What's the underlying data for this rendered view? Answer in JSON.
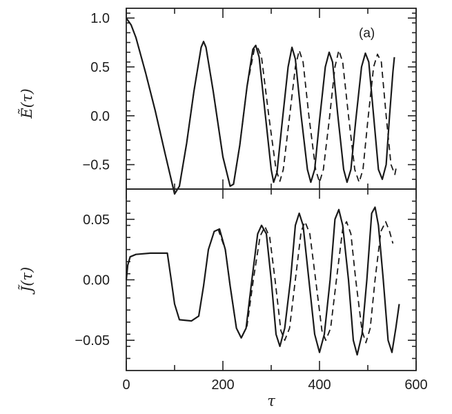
{
  "chart_data": [
    {
      "type": "line",
      "panel": "top",
      "annotation": "(a)",
      "ylabel": "Ẽ(τ)",
      "xlabel": "",
      "xlim": [
        0,
        600
      ],
      "ylim": [
        -0.75,
        1.1
      ],
      "yticks": [
        {
          "value": 1.0,
          "label": "1.0"
        },
        {
          "value": 0.5,
          "label": "0.5"
        },
        {
          "value": 0.0,
          "label": "0.0"
        },
        {
          "value": -0.5,
          "label": "−0.5"
        }
      ],
      "series": [
        {
          "style": "solid",
          "points": [
            [
              0,
              1.0
            ],
            [
              10,
              0.93
            ],
            [
              20,
              0.8
            ],
            [
              40,
              0.44
            ],
            [
              60,
              0.05
            ],
            [
              80,
              -0.38
            ],
            [
              100,
              -0.8
            ],
            [
              110,
              -0.72
            ],
            [
              125,
              -0.28
            ],
            [
              140,
              0.25
            ],
            [
              155,
              0.7
            ],
            [
              160,
              0.76
            ],
            [
              165,
              0.7
            ],
            [
              180,
              0.25
            ],
            [
              200,
              -0.42
            ],
            [
              215,
              -0.72
            ],
            [
              222,
              -0.7
            ],
            [
              235,
              -0.3
            ],
            [
              250,
              0.3
            ],
            [
              262,
              0.68
            ],
            [
              268,
              0.72
            ],
            [
              275,
              0.6
            ],
            [
              288,
              0.0
            ],
            [
              300,
              -0.55
            ],
            [
              305,
              -0.68
            ],
            [
              312,
              -0.58
            ],
            [
              322,
              -0.1
            ],
            [
              335,
              0.5
            ],
            [
              343,
              0.7
            ],
            [
              350,
              0.58
            ],
            [
              362,
              0.0
            ],
            [
              375,
              -0.55
            ],
            [
              382,
              -0.68
            ],
            [
              390,
              -0.55
            ],
            [
              400,
              -0.05
            ],
            [
              412,
              0.5
            ],
            [
              420,
              0.65
            ],
            [
              427,
              0.55
            ],
            [
              438,
              0.0
            ],
            [
              450,
              -0.55
            ],
            [
              457,
              -0.68
            ],
            [
              465,
              -0.55
            ],
            [
              475,
              -0.05
            ],
            [
              487,
              0.5
            ],
            [
              495,
              0.64
            ],
            [
              502,
              0.55
            ],
            [
              512,
              0.0
            ],
            [
              522,
              -0.55
            ],
            [
              530,
              -0.65
            ],
            [
              538,
              -0.5
            ],
            [
              545,
              0.0
            ],
            [
              552,
              0.45
            ],
            [
              555,
              0.6
            ]
          ]
        },
        {
          "style": "dashed",
          "points": [
            [
              0,
              1.0
            ],
            [
              10,
              0.93
            ],
            [
              20,
              0.8
            ],
            [
              40,
              0.44
            ],
            [
              60,
              0.05
            ],
            [
              80,
              -0.38
            ],
            [
              100,
              -0.8
            ],
            [
              110,
              -0.72
            ],
            [
              125,
              -0.28
            ],
            [
              140,
              0.25
            ],
            [
              155,
              0.7
            ],
            [
              160,
              0.76
            ],
            [
              165,
              0.7
            ],
            [
              180,
              0.25
            ],
            [
              200,
              -0.42
            ],
            [
              215,
              -0.72
            ],
            [
              222,
              -0.7
            ],
            [
              235,
              -0.3
            ],
            [
              250,
              0.3
            ],
            [
              265,
              0.68
            ],
            [
              272,
              0.7
            ],
            [
              280,
              0.6
            ],
            [
              295,
              0.0
            ],
            [
              310,
              -0.55
            ],
            [
              318,
              -0.67
            ],
            [
              325,
              -0.55
            ],
            [
              337,
              -0.05
            ],
            [
              350,
              0.5
            ],
            [
              358,
              0.67
            ],
            [
              366,
              0.55
            ],
            [
              378,
              0.0
            ],
            [
              392,
              -0.55
            ],
            [
              400,
              -0.68
            ],
            [
              408,
              -0.55
            ],
            [
              420,
              -0.05
            ],
            [
              432,
              0.5
            ],
            [
              440,
              0.67
            ],
            [
              448,
              0.55
            ],
            [
              460,
              0.0
            ],
            [
              473,
              -0.55
            ],
            [
              482,
              -0.68
            ],
            [
              490,
              -0.55
            ],
            [
              500,
              -0.05
            ],
            [
              512,
              0.5
            ],
            [
              520,
              0.63
            ],
            [
              528,
              0.55
            ],
            [
              538,
              0.0
            ],
            [
              548,
              -0.5
            ],
            [
              556,
              -0.6
            ],
            [
              560,
              -0.5
            ]
          ]
        }
      ]
    },
    {
      "type": "line",
      "panel": "bottom",
      "ylabel": "J̃(τ)",
      "xlabel": "τ",
      "xlim": [
        0,
        600
      ],
      "ylim": [
        -0.075,
        0.075
      ],
      "xticks": [
        {
          "value": 0,
          "label": "0"
        },
        {
          "value": 200,
          "label": "200"
        },
        {
          "value": 400,
          "label": "400"
        },
        {
          "value": 600,
          "label": "600"
        }
      ],
      "yticks": [
        {
          "value": 0.05,
          "label": "0.05"
        },
        {
          "value": 0.0,
          "label": "0.00"
        },
        {
          "value": -0.05,
          "label": "−0.05"
        }
      ],
      "series": [
        {
          "style": "solid",
          "points": [
            [
              0,
              0.0
            ],
            [
              3,
              0.012
            ],
            [
              8,
              0.019
            ],
            [
              20,
              0.021
            ],
            [
              50,
              0.022
            ],
            [
              85,
              0.022
            ],
            [
              93,
              0.0
            ],
            [
              100,
              -0.02
            ],
            [
              110,
              -0.033
            ],
            [
              135,
              -0.034
            ],
            [
              150,
              -0.03
            ],
            [
              160,
              -0.005
            ],
            [
              170,
              0.025
            ],
            [
              182,
              0.04
            ],
            [
              193,
              0.042
            ],
            [
              205,
              0.025
            ],
            [
              215,
              -0.005
            ],
            [
              228,
              -0.04
            ],
            [
              238,
              -0.048
            ],
            [
              248,
              -0.04
            ],
            [
              260,
              0.0
            ],
            [
              272,
              0.038
            ],
            [
              280,
              0.045
            ],
            [
              290,
              0.038
            ],
            [
              300,
              0.0
            ],
            [
              310,
              -0.045
            ],
            [
              318,
              -0.055
            ],
            [
              328,
              -0.04
            ],
            [
              340,
              0.0
            ],
            [
              350,
              0.045
            ],
            [
              358,
              0.055
            ],
            [
              366,
              0.045
            ],
            [
              378,
              0.0
            ],
            [
              390,
              -0.045
            ],
            [
              400,
              -0.06
            ],
            [
              410,
              -0.045
            ],
            [
              422,
              0.0
            ],
            [
              432,
              0.05
            ],
            [
              440,
              0.058
            ],
            [
              448,
              0.045
            ],
            [
              460,
              0.0
            ],
            [
              470,
              -0.05
            ],
            [
              478,
              -0.062
            ],
            [
              488,
              -0.045
            ],
            [
              498,
              0.0
            ],
            [
              508,
              0.055
            ],
            [
              515,
              0.06
            ],
            [
              522,
              0.045
            ],
            [
              532,
              0.0
            ],
            [
              542,
              -0.05
            ],
            [
              550,
              -0.06
            ],
            [
              558,
              -0.04
            ],
            [
              565,
              -0.02
            ]
          ]
        },
        {
          "style": "dashed",
          "points": [
            [
              190,
              0.042
            ],
            [
              205,
              0.025
            ],
            [
              215,
              -0.005
            ],
            [
              228,
              -0.04
            ],
            [
              238,
              -0.048
            ],
            [
              250,
              -0.038
            ],
            [
              263,
              0.0
            ],
            [
              277,
              0.036
            ],
            [
              287,
              0.044
            ],
            [
              297,
              0.035
            ],
            [
              308,
              0.0
            ],
            [
              320,
              -0.042
            ],
            [
              328,
              -0.05
            ],
            [
              338,
              -0.04
            ],
            [
              350,
              0.0
            ],
            [
              362,
              0.04
            ],
            [
              370,
              0.048
            ],
            [
              380,
              0.038
            ],
            [
              392,
              0.0
            ],
            [
              405,
              -0.042
            ],
            [
              413,
              -0.05
            ],
            [
              423,
              -0.04
            ],
            [
              435,
              0.0
            ],
            [
              448,
              0.042
            ],
            [
              456,
              0.048
            ],
            [
              465,
              0.038
            ],
            [
              475,
              0.0
            ],
            [
              488,
              -0.042
            ],
            [
              496,
              -0.052
            ],
            [
              505,
              -0.04
            ],
            [
              515,
              0.0
            ],
            [
              527,
              0.04
            ],
            [
              537,
              0.048
            ],
            [
              545,
              0.04
            ],
            [
              552,
              0.03
            ]
          ]
        }
      ]
    }
  ]
}
